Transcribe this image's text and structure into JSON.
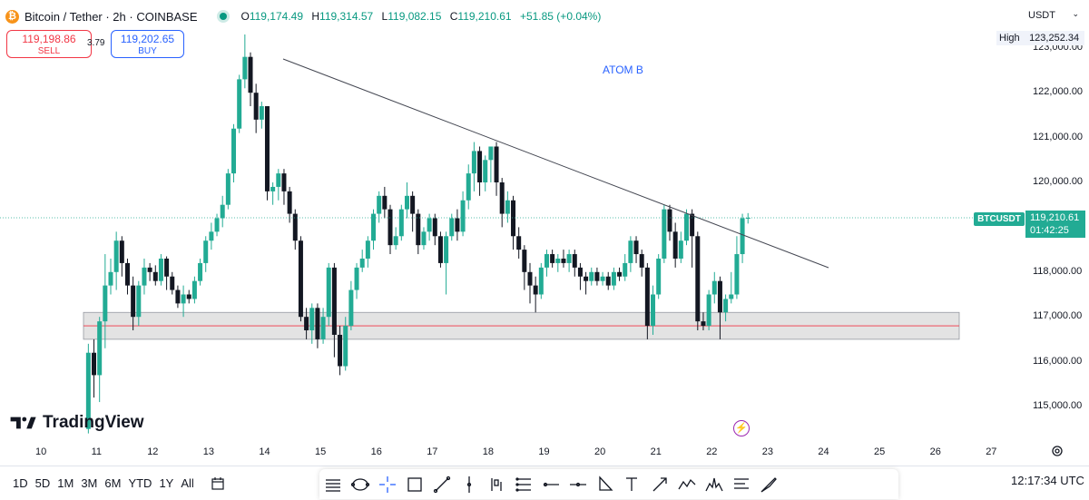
{
  "header": {
    "logo_glyph": "₿",
    "symbol": "Bitcoin / Tether · 2h · COINBASE",
    "ohlc": {
      "o_key": "O",
      "o_val": "119,174.49",
      "h_key": "H",
      "h_val": "119,314.57",
      "l_key": "L",
      "l_val": "119,082.15",
      "c_key": "C",
      "c_val": "119,210.61",
      "change": "+51.85 (+0.04%)"
    }
  },
  "trade": {
    "sell_price": "119,198.86",
    "sell_label": "SELL",
    "spread": "3.79",
    "buy_price": "119,202.65",
    "buy_label": "BUY"
  },
  "annotation_text": "ATOM B",
  "brand": "TradingView",
  "price_axis": {
    "currency": "USDT",
    "high_label": "High",
    "high_value": "123,252.34",
    "ticks": [
      "123,000.00",
      "122,000.00",
      "121,000.00",
      "120,000.00",
      "118,000.00",
      "117,000.00",
      "116,000.00",
      "115,000.00"
    ],
    "current_symbol": "BTCUSDT",
    "current_price": "119,210.61",
    "countdown": "01:42:25"
  },
  "time_axis": {
    "labels": [
      "10",
      "11",
      "12",
      "13",
      "14",
      "15",
      "16",
      "17",
      "18",
      "19",
      "20",
      "21",
      "22",
      "23",
      "24",
      "25",
      "26",
      "27"
    ]
  },
  "timeframes": [
    "1D",
    "5D",
    "1M",
    "3M",
    "6M",
    "YTD",
    "1Y",
    "All"
  ],
  "clock": "12:17:34 UTC",
  "colors": {
    "up": "#22ab94",
    "down": "#131722",
    "zone_fill": "#e0e0e0",
    "zone_line": "#f23645",
    "trendline": "#434651",
    "accent": "#2962ff"
  },
  "tools": [
    "rectangle-lines-icon",
    "ellipse-icon",
    "crosshair-icon",
    "rectangle-icon",
    "line-icon",
    "vertical-line-icon",
    "bar-pattern-icon",
    "parallel-lines-icon",
    "horizontal-ray-icon",
    "horizontal-line-icon",
    "triangle-icon",
    "text-icon",
    "arrow-icon",
    "pattern-icon",
    "head-shoulders-icon",
    "fib-icon",
    "brush-icon"
  ],
  "chart_data": {
    "type": "candlestick",
    "symbol": "BTCUSDT",
    "interval": "2h",
    "y_range": [
      114600,
      123400
    ],
    "x_range_days": [
      10,
      27.4
    ],
    "support_zone": {
      "low": 116500,
      "high": 117100,
      "line": 116800
    },
    "trendline": [
      {
        "x": 14.3,
        "y": 122850
      },
      {
        "x": 24.0,
        "y": 118050
      }
    ],
    "candles": [
      [
        10.85,
        114500,
        116200,
        114400,
        116400
      ],
      [
        10.95,
        116200,
        115700,
        115200,
        116500
      ],
      [
        11.05,
        115700,
        116900,
        115100,
        117000
      ],
      [
        11.15,
        116900,
        117700,
        116300,
        118400
      ],
      [
        11.25,
        117700,
        118000,
        117500,
        118300
      ],
      [
        11.35,
        118000,
        118700,
        117600,
        118900
      ],
      [
        11.45,
        118700,
        118200,
        117900,
        118800
      ],
      [
        11.55,
        118200,
        117700,
        117500,
        118300
      ],
      [
        11.65,
        117700,
        117000,
        116700,
        117900
      ],
      [
        11.75,
        117000,
        117700,
        116800,
        117800
      ],
      [
        11.85,
        117700,
        118100,
        117500,
        118300
      ],
      [
        11.95,
        118100,
        118000,
        117800,
        118200
      ],
      [
        12.05,
        118000,
        117800,
        117700,
        118150
      ],
      [
        12.15,
        117800,
        118300,
        117700,
        118400
      ],
      [
        12.25,
        118300,
        117900,
        117600,
        118350
      ],
      [
        12.35,
        117900,
        117600,
        117500,
        118000
      ],
      [
        12.45,
        117600,
        117300,
        117200,
        117700
      ],
      [
        12.55,
        117300,
        117500,
        117000,
        117700
      ],
      [
        12.65,
        117500,
        117400,
        117300,
        117600
      ],
      [
        12.75,
        117400,
        117800,
        117300,
        117900
      ],
      [
        12.85,
        117800,
        118200,
        117700,
        118300
      ],
      [
        12.95,
        118200,
        118700,
        118000,
        118800
      ],
      [
        13.05,
        118700,
        118900,
        118500,
        119100
      ],
      [
        13.15,
        118900,
        119200,
        118800,
        119300
      ],
      [
        13.25,
        119200,
        119500,
        119000,
        119700
      ],
      [
        13.35,
        119500,
        120200,
        119400,
        120300
      ],
      [
        13.45,
        120200,
        121200,
        120000,
        121300
      ],
      [
        13.55,
        121200,
        122300,
        121100,
        122400
      ],
      [
        13.65,
        122300,
        122800,
        122100,
        123300
      ],
      [
        13.75,
        122800,
        122000,
        121700,
        122900
      ],
      [
        13.85,
        122000,
        121400,
        121100,
        122200
      ],
      [
        13.95,
        121400,
        121700,
        121200,
        121800
      ],
      [
        14.05,
        121700,
        119800,
        119600,
        121700
      ],
      [
        14.15,
        119800,
        119900,
        119500,
        120000
      ],
      [
        14.25,
        119900,
        120200,
        119600,
        120300
      ],
      [
        14.35,
        120200,
        119800,
        119500,
        120300
      ],
      [
        14.45,
        119800,
        119300,
        119100,
        119900
      ],
      [
        14.55,
        119300,
        118700,
        118500,
        119400
      ],
      [
        14.65,
        118700,
        117000,
        116900,
        118800
      ],
      [
        14.75,
        117000,
        116700,
        116500,
        117200
      ],
      [
        14.85,
        116700,
        117200,
        116400,
        117300
      ],
      [
        14.95,
        117200,
        116500,
        116300,
        117300
      ],
      [
        15.05,
        116500,
        117000,
        116400,
        117200
      ],
      [
        15.15,
        117000,
        118100,
        116800,
        118200
      ],
      [
        15.25,
        118100,
        116600,
        116100,
        118200
      ],
      [
        15.35,
        116600,
        115900,
        115700,
        116800
      ],
      [
        15.45,
        115900,
        116800,
        115800,
        117000
      ],
      [
        15.55,
        116800,
        117600,
        116700,
        117800
      ],
      [
        15.65,
        117600,
        118100,
        117400,
        118200
      ],
      [
        15.75,
        118100,
        118300,
        118000,
        118500
      ],
      [
        15.85,
        118300,
        118700,
        118100,
        118800
      ],
      [
        15.95,
        118700,
        119300,
        118500,
        119400
      ],
      [
        16.05,
        119300,
        119700,
        119100,
        119800
      ],
      [
        16.15,
        119700,
        119400,
        119200,
        119900
      ],
      [
        16.25,
        119400,
        118600,
        118400,
        119500
      ],
      [
        16.35,
        118600,
        118800,
        118500,
        119000
      ],
      [
        16.45,
        118800,
        119400,
        118700,
        119500
      ],
      [
        16.55,
        119400,
        119700,
        119200,
        120000
      ],
      [
        16.65,
        119700,
        119300,
        118900,
        119800
      ],
      [
        16.75,
        119300,
        118600,
        118400,
        119400
      ],
      [
        16.85,
        118600,
        118900,
        118500,
        119000
      ],
      [
        16.95,
        118900,
        119200,
        118700,
        119300
      ],
      [
        17.05,
        119200,
        118800,
        118600,
        119300
      ],
      [
        17.15,
        118800,
        118200,
        118100,
        118900
      ],
      [
        17.25,
        118200,
        118800,
        117500,
        118900
      ],
      [
        17.35,
        118800,
        119200,
        118700,
        119300
      ],
      [
        17.45,
        119200,
        118900,
        118700,
        119400
      ],
      [
        17.55,
        118900,
        119600,
        118800,
        119800
      ],
      [
        17.65,
        119600,
        120200,
        119400,
        120400
      ],
      [
        17.75,
        120200,
        120700,
        119800,
        120900
      ],
      [
        17.85,
        120700,
        120000,
        119700,
        120800
      ],
      [
        17.95,
        120000,
        120500,
        119800,
        120600
      ],
      [
        18.05,
        120500,
        120800,
        120000,
        120800
      ],
      [
        18.15,
        120800,
        120000,
        119700,
        120900
      ],
      [
        18.25,
        120000,
        119300,
        119000,
        120100
      ],
      [
        18.35,
        119300,
        119600,
        119100,
        119800
      ],
      [
        18.45,
        119600,
        118800,
        118500,
        119700
      ],
      [
        18.55,
        118800,
        118500,
        118300,
        119000
      ],
      [
        18.65,
        118500,
        118000,
        117600,
        118600
      ],
      [
        18.75,
        118000,
        117700,
        117300,
        118200
      ],
      [
        18.85,
        117700,
        117500,
        117100,
        117900
      ],
      [
        18.95,
        117500,
        118100,
        117400,
        118200
      ],
      [
        19.05,
        118100,
        118400,
        117900,
        118500
      ],
      [
        19.15,
        118400,
        118200,
        118100,
        118500
      ],
      [
        19.25,
        118200,
        118300,
        118000,
        118400
      ],
      [
        19.35,
        118300,
        118200,
        118100,
        118500
      ],
      [
        19.45,
        118200,
        118400,
        118000,
        118500
      ],
      [
        19.55,
        118400,
        118100,
        117900,
        118500
      ],
      [
        19.65,
        118100,
        117900,
        117600,
        118200
      ],
      [
        19.75,
        117900,
        117800,
        117500,
        118000
      ],
      [
        19.85,
        117800,
        118000,
        117700,
        118100
      ],
      [
        19.95,
        118000,
        117800,
        117700,
        118100
      ],
      [
        20.05,
        117800,
        117900,
        117700,
        118000
      ],
      [
        20.15,
        117900,
        117700,
        117600,
        118000
      ],
      [
        20.25,
        117700,
        118000,
        117600,
        118100
      ],
      [
        20.35,
        118000,
        117900,
        117800,
        118100
      ],
      [
        20.45,
        117900,
        118200,
        117800,
        118400
      ],
      [
        20.55,
        118200,
        118700,
        118000,
        118800
      ],
      [
        20.65,
        118700,
        118400,
        118200,
        118800
      ],
      [
        20.75,
        118400,
        118100,
        117900,
        118500
      ],
      [
        20.85,
        118100,
        116800,
        116500,
        118200
      ],
      [
        20.95,
        116800,
        117500,
        116600,
        117700
      ],
      [
        21.05,
        117500,
        118300,
        117400,
        118400
      ],
      [
        21.15,
        118300,
        119400,
        118200,
        119500
      ],
      [
        21.25,
        119400,
        118900,
        118700,
        119500
      ],
      [
        21.35,
        118900,
        118300,
        118100,
        119100
      ],
      [
        21.45,
        118300,
        118700,
        118200,
        118900
      ],
      [
        21.55,
        118700,
        119300,
        118600,
        119400
      ],
      [
        21.65,
        119300,
        118800,
        118100,
        119400
      ],
      [
        21.75,
        118800,
        116900,
        116700,
        118900
      ],
      [
        21.85,
        116900,
        116800,
        116700,
        117100
      ],
      [
        21.95,
        116800,
        117500,
        116700,
        117600
      ],
      [
        22.05,
        117500,
        117800,
        117300,
        118000
      ],
      [
        22.15,
        117800,
        117100,
        116500,
        117900
      ],
      [
        22.25,
        117100,
        117400,
        116900,
        117500
      ],
      [
        22.35,
        117400,
        117500,
        117300,
        118000
      ],
      [
        22.45,
        117500,
        118400,
        117400,
        118800
      ],
      [
        22.55,
        118400,
        119200,
        118200,
        119300
      ],
      [
        22.65,
        119200,
        119210,
        119082,
        119315
      ]
    ]
  }
}
